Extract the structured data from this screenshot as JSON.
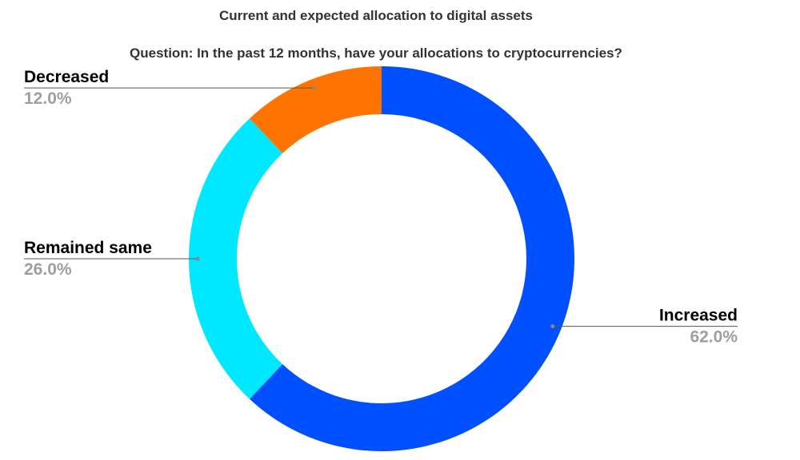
{
  "chart_data": {
    "type": "donut",
    "title": "Current and expected allocation to digital assets",
    "subtitle": "Question: In the past 12 months, have your allocations to cryptocurrencies?",
    "categories": [
      "Increased",
      "Remained same",
      "Decreased"
    ],
    "values": [
      62,
      26,
      12
    ],
    "value_labels": [
      "62.0%",
      "26.0%",
      "12.0%"
    ],
    "colors": [
      "#0050ff",
      "#00e8ff",
      "#ff7300"
    ]
  }
}
